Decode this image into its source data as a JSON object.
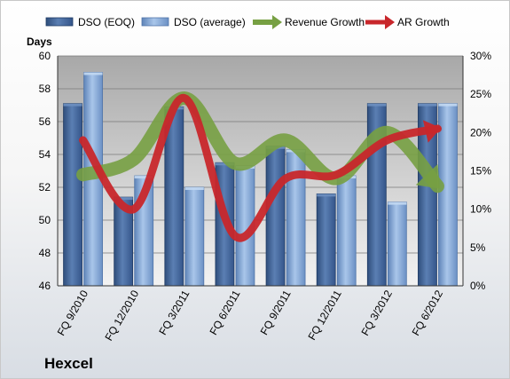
{
  "chart_data": {
    "type": "bar",
    "company": "Hexcel",
    "categories": [
      "FQ 9/2010",
      "FQ 12/2010",
      "FQ 3/2011",
      "FQ 6/2011",
      "FQ 9/2011",
      "FQ 12/2011",
      "FQ 3/2012",
      "FQ 6/2012"
    ],
    "ylabel": "Days",
    "ylim": [
      46,
      60
    ],
    "yticks": [
      46,
      48,
      50,
      52,
      54,
      56,
      58,
      60
    ],
    "y2lim": [
      0,
      30
    ],
    "y2ticks": [
      "0%",
      "5%",
      "10%",
      "15%",
      "20%",
      "25%",
      "30%"
    ],
    "grid": true,
    "legend_position": "top",
    "series": [
      {
        "name": "DSO (EOQ)",
        "kind": "bar",
        "color": "#4a6fa5",
        "values": [
          57.1,
          51.4,
          56.9,
          53.5,
          54.5,
          51.6,
          57.1,
          57.1
        ]
      },
      {
        "name": "DSO (average)",
        "kind": "bar",
        "color": "#8fb3de",
        "values": [
          59.0,
          52.7,
          52.0,
          53.3,
          54.3,
          52.7,
          51.1,
          57.1
        ]
      },
      {
        "name": "Revenue Growth",
        "kind": "line",
        "axis": "right",
        "color": "#77a043",
        "values": [
          14.5,
          16.5,
          24.5,
          16.0,
          19.0,
          14.0,
          20.0,
          13.0
        ]
      },
      {
        "name": "AR Growth",
        "kind": "line",
        "axis": "right",
        "color": "#c8272b",
        "values": [
          19.0,
          10.0,
          24.5,
          6.5,
          14.0,
          14.5,
          19.0,
          20.5
        ]
      }
    ]
  }
}
